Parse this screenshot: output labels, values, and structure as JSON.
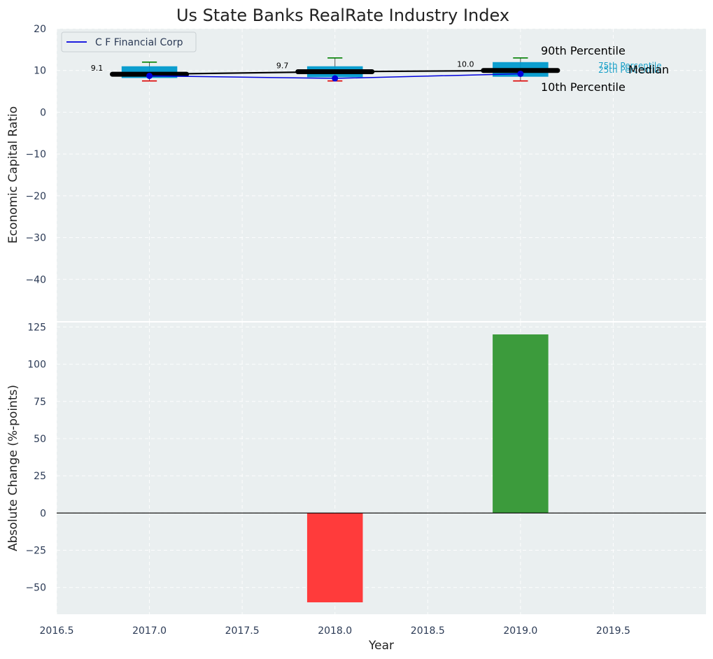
{
  "chart_data": [
    {
      "type": "box",
      "title": "Us State Banks RealRate Industry Index",
      "ylabel": "Economic Capital Ratio",
      "xlim": [
        2016.5,
        2020.0
      ],
      "ylim": [
        -50,
        20
      ],
      "yticks": [
        20,
        10,
        0,
        -10,
        -20,
        -30,
        -40
      ],
      "legend": {
        "position": "top-left",
        "label": "C F Financial Corp"
      },
      "colors": {
        "box": "#0099cc",
        "company": "#0000dd",
        "median": "#000000",
        "p90": "#008000",
        "p10": "#dd0000",
        "plot_bg": "#eaeff0"
      },
      "years": [
        2017,
        2018,
        2019
      ],
      "p10": [
        7.5,
        7.5,
        7.5
      ],
      "p25": [
        8.2,
        8.4,
        8.5
      ],
      "median": [
        9.1,
        9.7,
        10.0
      ],
      "p75": [
        11.0,
        11.0,
        12.0
      ],
      "p90": [
        12.0,
        13.0,
        13.0
      ],
      "company": [
        8.7,
        8.1,
        9.2
      ],
      "median_labels": [
        "9.1",
        "9.7",
        "10.0"
      ],
      "annotations": {
        "p90": "90th Percentile",
        "p75": "75th Percentile",
        "median": "Median",
        "p25": "25th Percentile",
        "p10": "10th Percentile"
      }
    },
    {
      "type": "bar",
      "xlabel": "Year",
      "ylabel": "Absolute Change (%-points)",
      "xlim": [
        2016.5,
        2020.0
      ],
      "ylim": [
        -68,
        128
      ],
      "yticks": [
        125,
        100,
        75,
        50,
        25,
        0,
        -25,
        -50
      ],
      "xticks": [
        2016.5,
        2017.0,
        2017.5,
        2018.0,
        2018.5,
        2019.0,
        2019.5
      ],
      "xtick_labels": [
        "2016.5",
        "2017.0",
        "2017.5",
        "2018.0",
        "2018.5",
        "2019.0",
        "2019.5"
      ],
      "x": [
        2018,
        2019
      ],
      "values": [
        -60,
        120
      ],
      "colors": [
        "#ff3b3b",
        "#3c9b3c"
      ]
    }
  ]
}
